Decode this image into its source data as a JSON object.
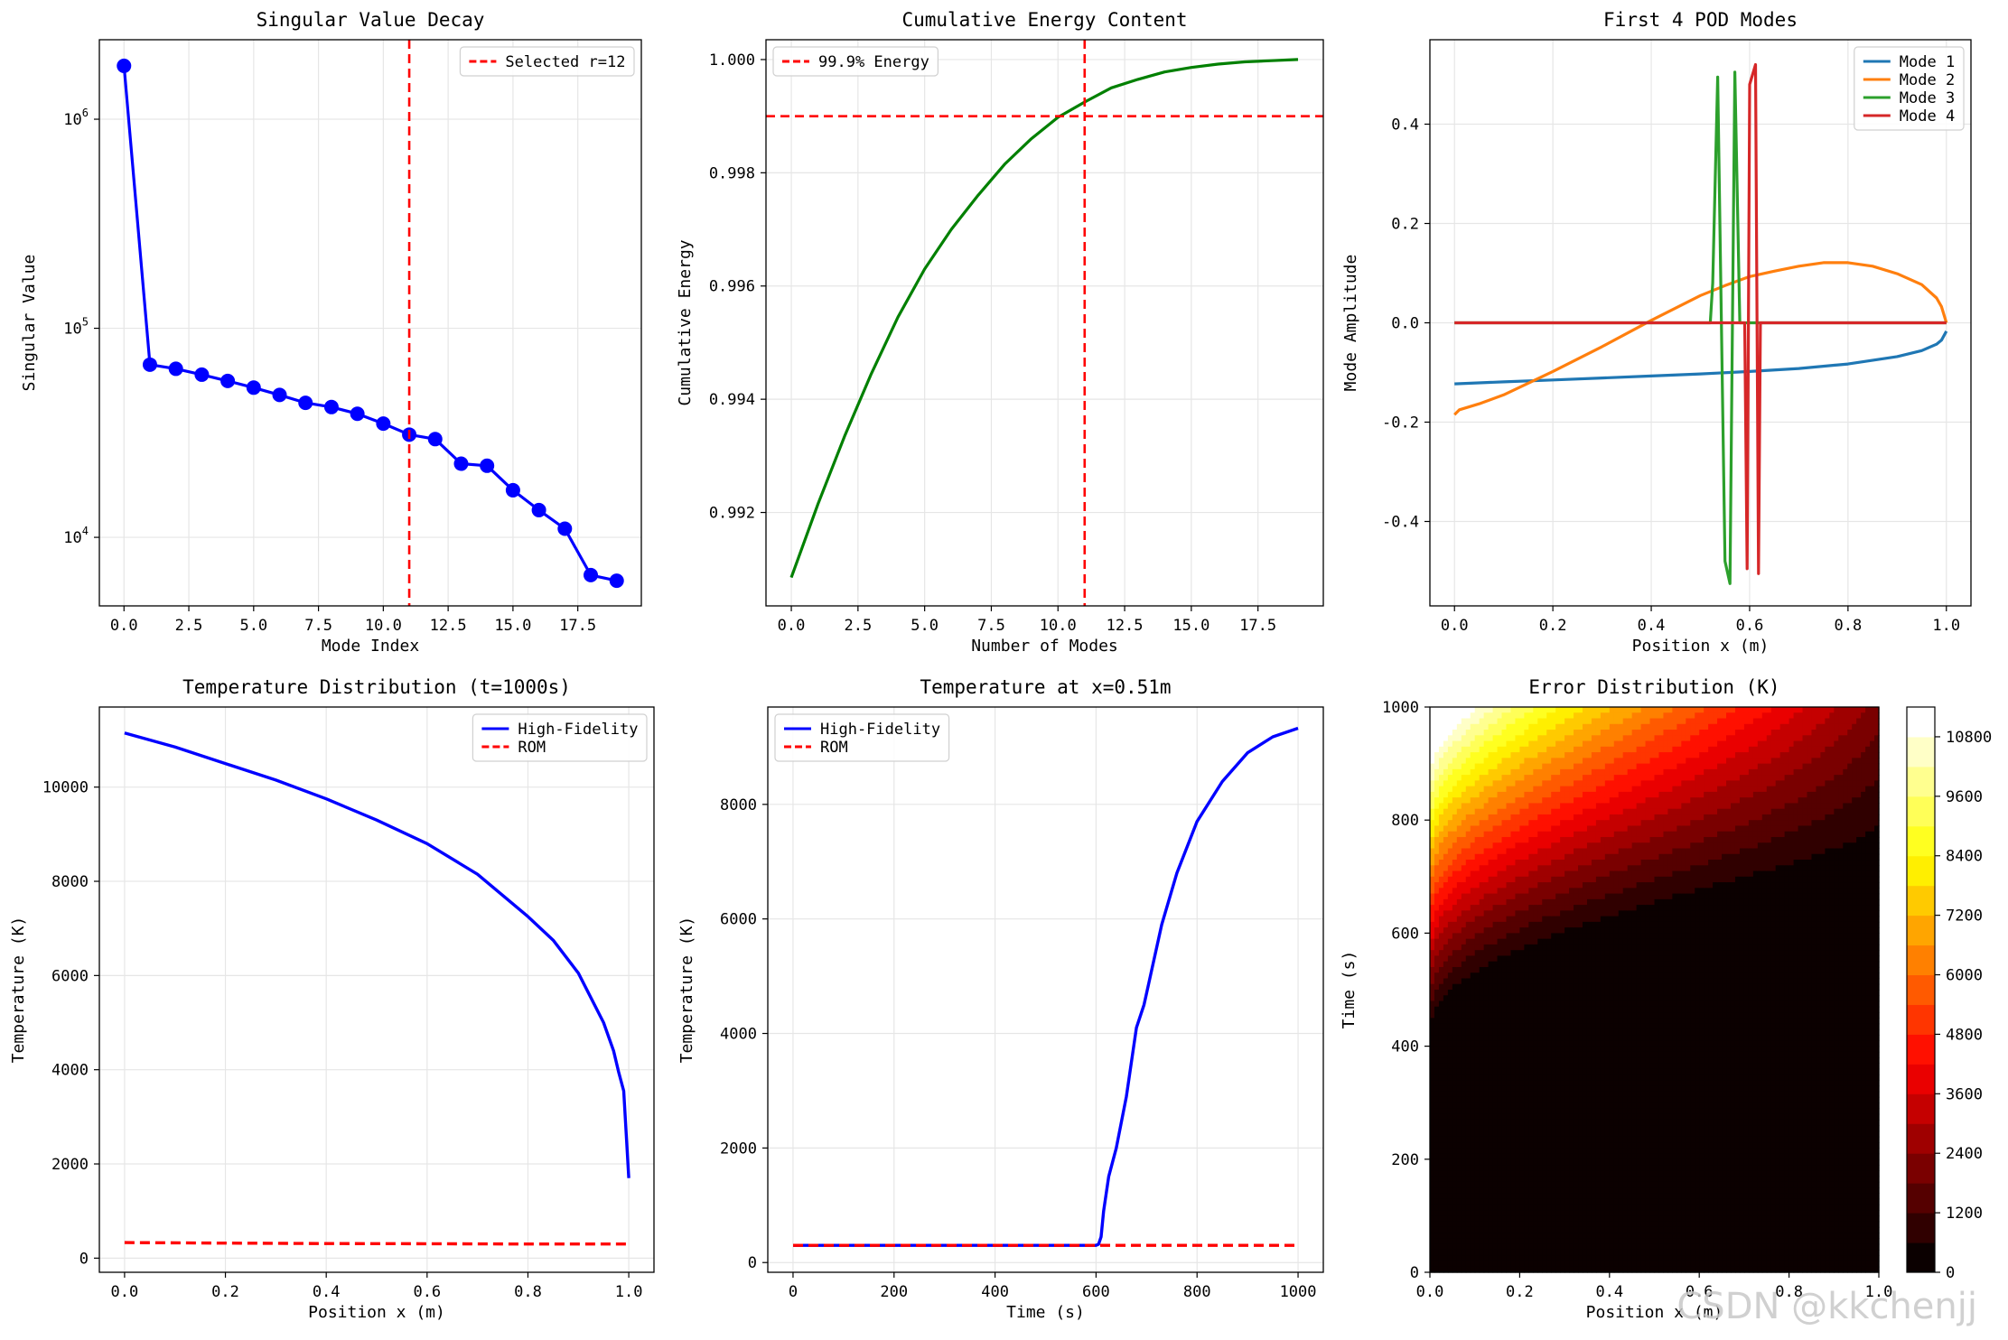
{
  "watermark": "CSDN @kkchenjj",
  "colors": {
    "blue": "#0000ff",
    "red": "#ff0000",
    "green": "#008000",
    "c0": "#1f77b4",
    "c1": "#ff7f0e",
    "c2": "#2ca02c",
    "c3": "#d62728"
  },
  "chart_data": [
    {
      "id": "p1",
      "type": "line",
      "title": "Singular Value Decay",
      "xlabel": "Mode Index",
      "ylabel": "Singular Value",
      "yscale": "log",
      "xlim": [
        -0.95,
        19.95
      ],
      "ylim": [
        4700,
        2400000
      ],
      "xticks": [
        0,
        2.5,
        5,
        7.5,
        10,
        12.5,
        15,
        17.5
      ],
      "xticklabels": [
        "0.0",
        "2.5",
        "5.0",
        "7.5",
        "10.0",
        "12.5",
        "15.0",
        "17.5"
      ],
      "yticks": [
        10000,
        100000,
        1000000
      ],
      "yticklabels": [
        {
          "base": "10",
          "exp": "4"
        },
        {
          "base": "10",
          "exp": "5"
        },
        {
          "base": "10",
          "exp": "6"
        }
      ],
      "series": [
        {
          "color": "#0000ff",
          "marker": true,
          "x": [
            0,
            1,
            2,
            3,
            4,
            5,
            6,
            7,
            8,
            9,
            10,
            11,
            12,
            13,
            14,
            15,
            16,
            17,
            18,
            19
          ],
          "y": [
            1800000,
            67000,
            64000,
            60000,
            56000,
            52000,
            48000,
            44000,
            42000,
            39000,
            35000,
            31000,
            29500,
            22500,
            22000,
            16800,
            13500,
            11000,
            6600,
            6200
          ]
        }
      ],
      "vlines": [
        {
          "x": 11,
          "color": "#ff0000",
          "name": "Selected r=12"
        }
      ],
      "legend": "top-right"
    },
    {
      "id": "p2",
      "type": "line",
      "title": "Cumulative Energy Content",
      "xlabel": "Number of Modes",
      "ylabel": "Cumulative Energy",
      "xlim": [
        -0.95,
        19.95
      ],
      "ylim": [
        0.99035,
        1.00035
      ],
      "xticks": [
        0,
        2.5,
        5,
        7.5,
        10,
        12.5,
        15,
        17.5
      ],
      "xticklabels": [
        "0.0",
        "2.5",
        "5.0",
        "7.5",
        "10.0",
        "12.5",
        "15.0",
        "17.5"
      ],
      "yticks": [
        0.992,
        0.994,
        0.996,
        0.998,
        1.0
      ],
      "yticklabels": [
        "0.992",
        "0.994",
        "0.996",
        "0.998",
        "1.000"
      ],
      "series": [
        {
          "color": "#008000",
          "marker": false,
          "x": [
            0,
            1,
            2,
            3,
            4,
            5,
            6,
            7,
            8,
            9,
            10,
            11,
            12,
            13,
            14,
            15,
            16,
            17,
            18,
            19
          ],
          "y": [
            0.99085,
            0.99215,
            0.99335,
            0.99445,
            0.99545,
            0.9963,
            0.997,
            0.9976,
            0.99815,
            0.9986,
            0.99898,
            0.99925,
            0.9995,
            0.99965,
            0.99978,
            0.99986,
            0.99992,
            0.99996,
            0.99998,
            1.0
          ]
        }
      ],
      "hlines": [
        {
          "y": 0.999,
          "color": "#ff0000",
          "name": "99.9% Energy"
        }
      ],
      "vlines": [
        {
          "x": 11,
          "color": "#ff0000"
        }
      ],
      "legend": "top-left"
    },
    {
      "id": "p3",
      "type": "line",
      "title": "First 4 POD Modes",
      "xlabel": "Position x (m)",
      "ylabel": "Mode Amplitude",
      "xlim": [
        -0.05,
        1.05
      ],
      "ylim": [
        -0.57,
        0.57
      ],
      "xticks": [
        0,
        0.2,
        0.4,
        0.6,
        0.8,
        1.0
      ],
      "xticklabels": [
        "0.0",
        "0.2",
        "0.4",
        "0.6",
        "0.8",
        "1.0"
      ],
      "yticks": [
        -0.4,
        -0.2,
        0,
        0.2,
        0.4
      ],
      "yticklabels": [
        "-0.4",
        "-0.2",
        "0.0",
        "0.2",
        "0.4"
      ],
      "series": [
        {
          "name": "Mode 1",
          "color": "#1f77b4",
          "x": [
            0,
            0.1,
            0.2,
            0.3,
            0.4,
            0.5,
            0.6,
            0.7,
            0.8,
            0.9,
            0.95,
            0.98,
            0.99,
            1.0
          ],
          "y": [
            -0.123,
            -0.119,
            -0.115,
            -0.111,
            -0.107,
            -0.103,
            -0.098,
            -0.092,
            -0.083,
            -0.068,
            -0.056,
            -0.043,
            -0.035,
            -0.017
          ]
        },
        {
          "name": "Mode 2",
          "color": "#ff7f0e",
          "x": [
            0,
            0.01,
            0.05,
            0.1,
            0.2,
            0.3,
            0.4,
            0.5,
            0.55,
            0.6,
            0.65,
            0.7,
            0.75,
            0.8,
            0.85,
            0.9,
            0.95,
            0.98,
            0.99,
            1.0
          ],
          "y": [
            -0.185,
            -0.175,
            -0.163,
            -0.145,
            -0.098,
            -0.048,
            0.005,
            0.055,
            0.075,
            0.093,
            0.104,
            0.114,
            0.121,
            0.121,
            0.114,
            0.099,
            0.077,
            0.05,
            0.033,
            0.0
          ]
        },
        {
          "name": "Mode 3",
          "color": "#2ca02c",
          "x": [
            0,
            0.52,
            0.525,
            0.535,
            0.55,
            0.56,
            0.57,
            0.58,
            1.0
          ],
          "y": [
            0,
            0,
            0.08,
            0.495,
            -0.48,
            -0.525,
            0.505,
            0,
            0
          ]
        },
        {
          "name": "Mode 4",
          "color": "#d62728",
          "x": [
            0,
            0.59,
            0.595,
            0.6,
            0.612,
            0.618,
            0.622,
            1.0
          ],
          "y": [
            0,
            0,
            -0.495,
            0.48,
            0.52,
            -0.505,
            0,
            0
          ]
        }
      ],
      "legend": "top-right"
    },
    {
      "id": "p4",
      "type": "line",
      "title": "Temperature Distribution (t=1000s)",
      "xlabel": "Position x (m)",
      "ylabel": "Temperature (K)",
      "xlim": [
        -0.05,
        1.05
      ],
      "ylim": [
        -300,
        11700
      ],
      "xticks": [
        0,
        0.2,
        0.4,
        0.6,
        0.8,
        1.0
      ],
      "xticklabels": [
        "0.0",
        "0.2",
        "0.4",
        "0.6",
        "0.8",
        "1.0"
      ],
      "yticks": [
        0,
        2000,
        4000,
        6000,
        8000,
        10000
      ],
      "yticklabels": [
        "0",
        "2000",
        "4000",
        "6000",
        "8000",
        "10000"
      ],
      "series": [
        {
          "name": "High-Fidelity",
          "color": "#0000ff",
          "dash": false,
          "x": [
            0,
            0.1,
            0.2,
            0.3,
            0.4,
            0.5,
            0.6,
            0.7,
            0.8,
            0.85,
            0.9,
            0.95,
            0.97,
            0.98,
            0.99,
            1.0
          ],
          "y": [
            11150,
            10850,
            10500,
            10150,
            9750,
            9300,
            8800,
            8150,
            7250,
            6750,
            6050,
            5000,
            4400,
            3950,
            3550,
            1700
          ]
        },
        {
          "name": "ROM",
          "color": "#ff0000",
          "dash": true,
          "x": [
            0,
            0.2,
            0.4,
            0.6,
            0.8,
            1.0
          ],
          "y": [
            330,
            320,
            310,
            305,
            300,
            300
          ]
        }
      ],
      "legend": "top-right"
    },
    {
      "id": "p5",
      "type": "line",
      "title": "Temperature at x=0.51m",
      "xlabel": "Time (s)",
      "ylabel": "Temperature (K)",
      "xlim": [
        -50,
        1050
      ],
      "ylim": [
        -170,
        9700
      ],
      "xticks": [
        0,
        200,
        400,
        600,
        800,
        1000
      ],
      "xticklabels": [
        "0",
        "200",
        "400",
        "600",
        "800",
        "1000"
      ],
      "yticks": [
        0,
        2000,
        4000,
        6000,
        8000
      ],
      "yticklabels": [
        "0",
        "2000",
        "4000",
        "6000",
        "8000"
      ],
      "series": [
        {
          "name": "High-Fidelity",
          "color": "#0000ff",
          "dash": false,
          "x": [
            0,
            600,
            605,
            610,
            615,
            625,
            640,
            660,
            680,
            695,
            710,
            730,
            760,
            800,
            850,
            900,
            950,
            1000
          ],
          "y": [
            300,
            300,
            320,
            450,
            900,
            1500,
            2000,
            2900,
            4100,
            4500,
            5100,
            5900,
            6800,
            7700,
            8400,
            8900,
            9180,
            9330
          ]
        },
        {
          "name": "ROM",
          "color": "#ff0000",
          "dash": true,
          "x": [
            0,
            1000
          ],
          "y": [
            300,
            300
          ]
        }
      ],
      "legend": "top-left"
    },
    {
      "id": "p6",
      "type": "heatmap",
      "title": "Error Distribution (K)",
      "xlabel": "Position x (m)",
      "ylabel": "Time (s)",
      "xlim": [
        0,
        1
      ],
      "ylim": [
        0,
        1000
      ],
      "xticks": [
        0,
        0.2,
        0.4,
        0.6,
        0.8,
        1.0
      ],
      "xticklabels": [
        "0.0",
        "0.2",
        "0.4",
        "0.6",
        "0.8",
        "1.0"
      ],
      "yticks": [
        0,
        200,
        400,
        600,
        800,
        1000
      ],
      "yticklabels": [
        "0",
        "200",
        "400",
        "600",
        "800",
        "1000"
      ],
      "colorbar": {
        "min": 0,
        "max": 11400,
        "ticks": [
          0,
          1200,
          2400,
          3600,
          4800,
          6000,
          7200,
          8400,
          9600,
          10800
        ],
        "ticklabels": [
          "0",
          "1200",
          "2400",
          "3600",
          "4800",
          "6000",
          "7200",
          "8400",
          "9600",
          "10800"
        ],
        "levels": 19
      },
      "field": {
        "front_start_time": 390,
        "front_end_time": 690,
        "max_error": 11200
      }
    }
  ]
}
